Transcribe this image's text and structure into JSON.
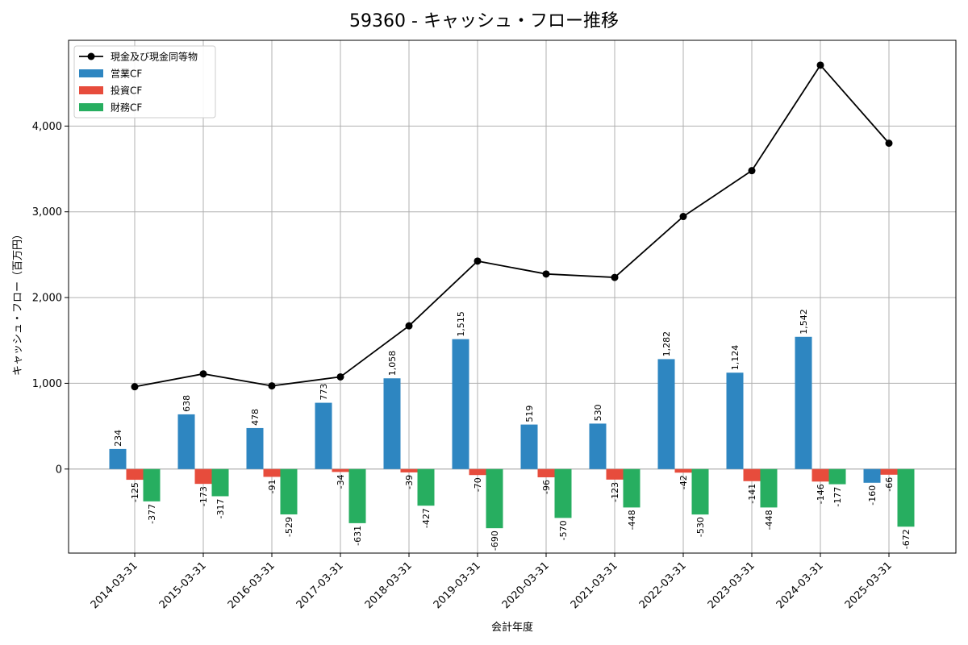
{
  "chart_data": {
    "type": "bar",
    "title": "59360 - キャッシュ・フロー推移",
    "xlabel": "会計年度",
    "ylabel": "キャッシュ・フロー（百万円）",
    "ylim": [
      -980,
      5000
    ],
    "yticks": [
      0,
      1000,
      2000,
      3000,
      4000
    ],
    "ytick_labels": [
      "0",
      "1,000",
      "2,000",
      "3,000",
      "4,000"
    ],
    "grid": true,
    "legend_position": "top-left",
    "categories": [
      "2014-03-31",
      "2015-03-31",
      "2016-03-31",
      "2017-03-31",
      "2018-03-31",
      "2019-03-31",
      "2020-03-31",
      "2021-03-31",
      "2022-03-31",
      "2023-03-31",
      "2024-03-31",
      "2025-03-31"
    ],
    "series": [
      {
        "name": "営業CF",
        "kind": "bar",
        "color": "#2e86c1",
        "values": [
          234,
          638,
          478,
          773,
          1058,
          1515,
          519,
          530,
          1282,
          1124,
          1542,
          -160
        ],
        "labels": [
          "234",
          "638",
          "478",
          "773",
          "1,058",
          "1,515",
          "519",
          "530",
          "1,282",
          "1,124",
          "1,542",
          "-160"
        ]
      },
      {
        "name": "投資CF",
        "kind": "bar",
        "color": "#e74c3c",
        "values": [
          -125,
          -173,
          -91,
          -34,
          -39,
          -70,
          -96,
          -123,
          -42,
          -141,
          -146,
          -66
        ],
        "labels": [
          "-125",
          "-173",
          "-91",
          "-34",
          "-39",
          "-70",
          "-96",
          "-123",
          "-42",
          "-141",
          "-146",
          "-66"
        ]
      },
      {
        "name": "財務CF",
        "kind": "bar",
        "color": "#27ae60",
        "values": [
          -377,
          -317,
          -529,
          -631,
          -427,
          -690,
          -570,
          -448,
          -530,
          -448,
          -177,
          -672
        ],
        "labels": [
          "-377",
          "-317",
          "-529",
          "-631",
          "-427",
          "-690",
          "-570",
          "-448",
          "-530",
          "-448",
          "-177",
          "-672"
        ]
      },
      {
        "name": "現金及び現金同等物",
        "kind": "line",
        "color": "#000000",
        "values": [
          960,
          1110,
          970,
          1075,
          1670,
          2425,
          2275,
          2235,
          2945,
          3480,
          4710,
          3800
        ]
      }
    ]
  }
}
